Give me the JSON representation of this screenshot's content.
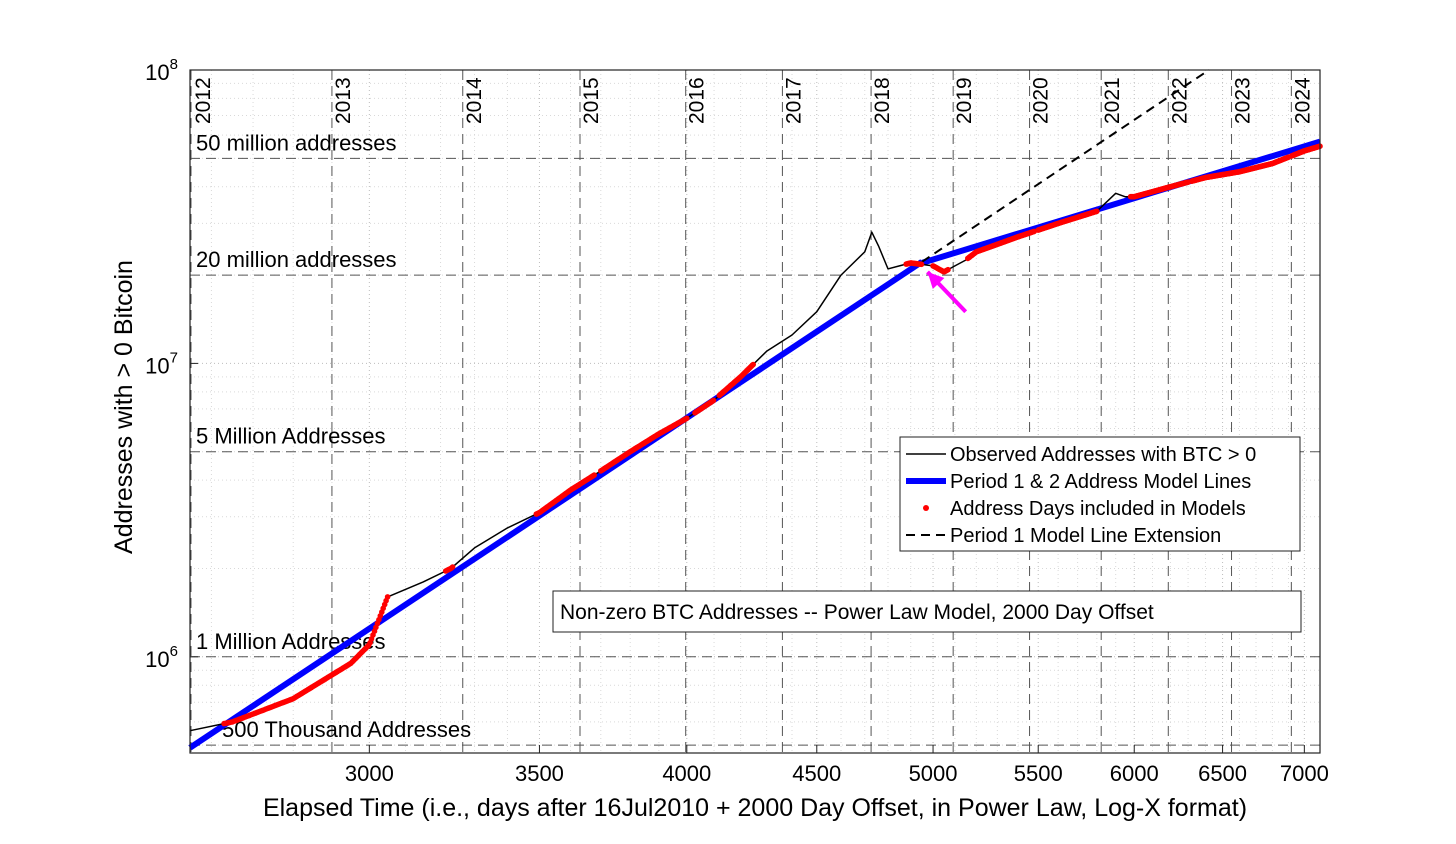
{
  "chart_data": {
    "type": "line",
    "title": "Non-zero BTC Addresses -- Power Law Model, 2000 Day Offset",
    "xlabel": "Elapsed Time (i.e., days after 16Jul2010 + 2000 Day Offset, in Power Law, Log-X format)",
    "ylabel": "Addresses with > 0 Bitcoin",
    "xscale": "log",
    "yscale": "log",
    "xlim": [
      2550,
      7100
    ],
    "ylim": [
      470000,
      100000000
    ],
    "grid": true,
    "legend_position": "right",
    "x_ticks": [
      {
        "value": 3000,
        "label": "3000"
      },
      {
        "value": 3500,
        "label": "3500"
      },
      {
        "value": 4000,
        "label": "4000"
      },
      {
        "value": 4500,
        "label": "4500"
      },
      {
        "value": 5000,
        "label": "5000"
      },
      {
        "value": 5500,
        "label": "5500"
      },
      {
        "value": 6000,
        "label": "6000"
      },
      {
        "value": 6500,
        "label": "6500"
      },
      {
        "value": 7000,
        "label": "7000"
      }
    ],
    "y_ticks": [
      {
        "value": 1000000,
        "base": "10",
        "exp": "6"
      },
      {
        "value": 10000000,
        "base": "10",
        "exp": "7"
      },
      {
        "value": 100000000,
        "base": "10",
        "exp": "8"
      }
    ],
    "year_lines": [
      {
        "label": "2012",
        "x": 2535
      },
      {
        "label": "2013",
        "x": 2900
      },
      {
        "label": "2014",
        "x": 3265
      },
      {
        "label": "2015",
        "x": 3631
      },
      {
        "label": "2016",
        "x": 3996
      },
      {
        "label": "2017",
        "x": 4362
      },
      {
        "label": "2018",
        "x": 4727
      },
      {
        "label": "2019",
        "x": 5092
      },
      {
        "label": "2020",
        "x": 5457
      },
      {
        "label": "2021",
        "x": 5823
      },
      {
        "label": "2022",
        "x": 6188
      },
      {
        "label": "2023",
        "x": 6553
      },
      {
        "label": "2024",
        "x": 6918
      }
    ],
    "level_lines": [
      {
        "label": "50 million addresses",
        "y": 50000000
      },
      {
        "label": "20 million addresses",
        "y": 20000000
      },
      {
        "label": "5 Million Addresses",
        "y": 5000000
      },
      {
        "label": "1 Million Addresses",
        "y": 1000000
      },
      {
        "label": "500 Thousand Addresses",
        "y": 500000
      }
    ],
    "series": [
      {
        "name": "Observed Addresses with BTC > 0",
        "color": "#000000",
        "style": "solid",
        "x": [
          2550,
          2650,
          2800,
          2950,
          3000,
          3050,
          3150,
          3230,
          3300,
          3400,
          3500,
          3600,
          3700,
          3800,
          3900,
          4000,
          4100,
          4200,
          4300,
          4400,
          4500,
          4600,
          4700,
          4730,
          4760,
          4800,
          4850,
          4900,
          5000,
          5050,
          5100,
          5150,
          5200,
          5400,
          5600,
          5800,
          5900,
          5950,
          6000,
          6200,
          6400,
          6600,
          6800,
          7000,
          7100
        ],
        "y": [
          560000,
          600000,
          720000,
          950000,
          1100000,
          1600000,
          1800000,
          2000000,
          2350000,
          2750000,
          3100000,
          3700000,
          4300000,
          5000000,
          5750000,
          6500000,
          7500000,
          9000000,
          11000000,
          12500000,
          15000000,
          20000000,
          24000000,
          28000000,
          25000000,
          21000000,
          21500000,
          22000000,
          21500000,
          20500000,
          21500000,
          22500000,
          24000000,
          27000000,
          30000000,
          33000000,
          38000000,
          37000000,
          37000000,
          40000000,
          43000000,
          45000000,
          48000000,
          53000000,
          55000000
        ]
      },
      {
        "name": "Period 1 & 2 Address Model Lines",
        "color": "#0000ff",
        "style": "solid",
        "segments": [
          {
            "x": [
              2550,
              4950
            ],
            "y": [
              490000,
              22200000
            ]
          },
          {
            "x": [
              4950,
              7100
            ],
            "y": [
              22000000,
              57000000
            ]
          }
        ]
      },
      {
        "name": "Address Days included in Models",
        "color": "#ff0000",
        "style": "dots",
        "ranges": [
          [
            2630,
            3050
          ],
          [
            3215,
            3235
          ],
          [
            3490,
            3680
          ],
          [
            3700,
            4000
          ],
          [
            4030,
            4100
          ],
          [
            4120,
            4250
          ],
          [
            4880,
            4950
          ],
          [
            5000,
            5070
          ],
          [
            5160,
            5480
          ],
          [
            5500,
            5800
          ],
          [
            5980,
            6300
          ],
          [
            6320,
            6900
          ],
          [
            6920,
            7100
          ]
        ]
      },
      {
        "name": "Period 1 Model Line Extension",
        "color": "#000000",
        "style": "dashed",
        "x": [
          4950,
          6420
        ],
        "y": [
          22200000,
          100000000
        ]
      }
    ],
    "annotations": [
      {
        "type": "arrow",
        "color": "#ff00ff",
        "from": [
          5150,
          15000000
        ],
        "to": [
          4975,
          20500000
        ]
      }
    ]
  }
}
